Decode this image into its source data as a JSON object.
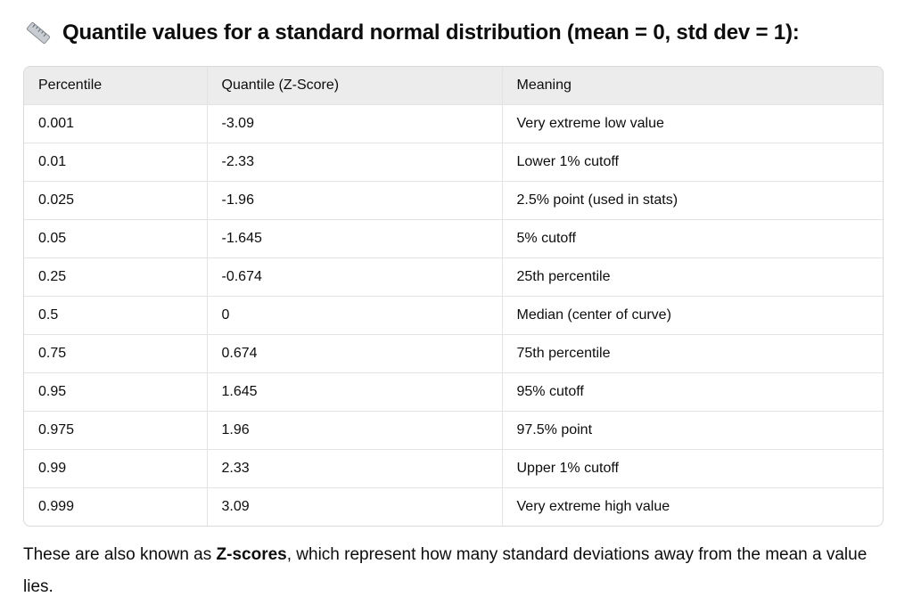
{
  "heading": {
    "title": "Quantile values for a standard normal distribution (mean = 0, std dev = 1):"
  },
  "table": {
    "columns": [
      "Percentile",
      "Quantile (Z-Score)",
      "Meaning"
    ],
    "rows": [
      [
        "0.001",
        "-3.09",
        "Very extreme low value"
      ],
      [
        "0.01",
        "-2.33",
        "Lower 1% cutoff"
      ],
      [
        "0.025",
        "-1.96",
        "2.5% point (used in stats)"
      ],
      [
        "0.05",
        "-1.645",
        "5% cutoff"
      ],
      [
        "0.25",
        "-0.674",
        "25th percentile"
      ],
      [
        "0.5",
        "0",
        "Median (center of curve)"
      ],
      [
        "0.75",
        "0.674",
        "75th percentile"
      ],
      [
        "0.95",
        "1.645",
        "95% cutoff"
      ],
      [
        "0.975",
        "1.96",
        "97.5% point"
      ],
      [
        "0.99",
        "2.33",
        "Upper 1% cutoff"
      ],
      [
        "0.999",
        "3.09",
        "Very extreme high value"
      ]
    ]
  },
  "paragraph": {
    "before": "These are also known as ",
    "bold": "Z-scores",
    "after": ", which represent how many standard deviations away from the mean a value lies."
  }
}
